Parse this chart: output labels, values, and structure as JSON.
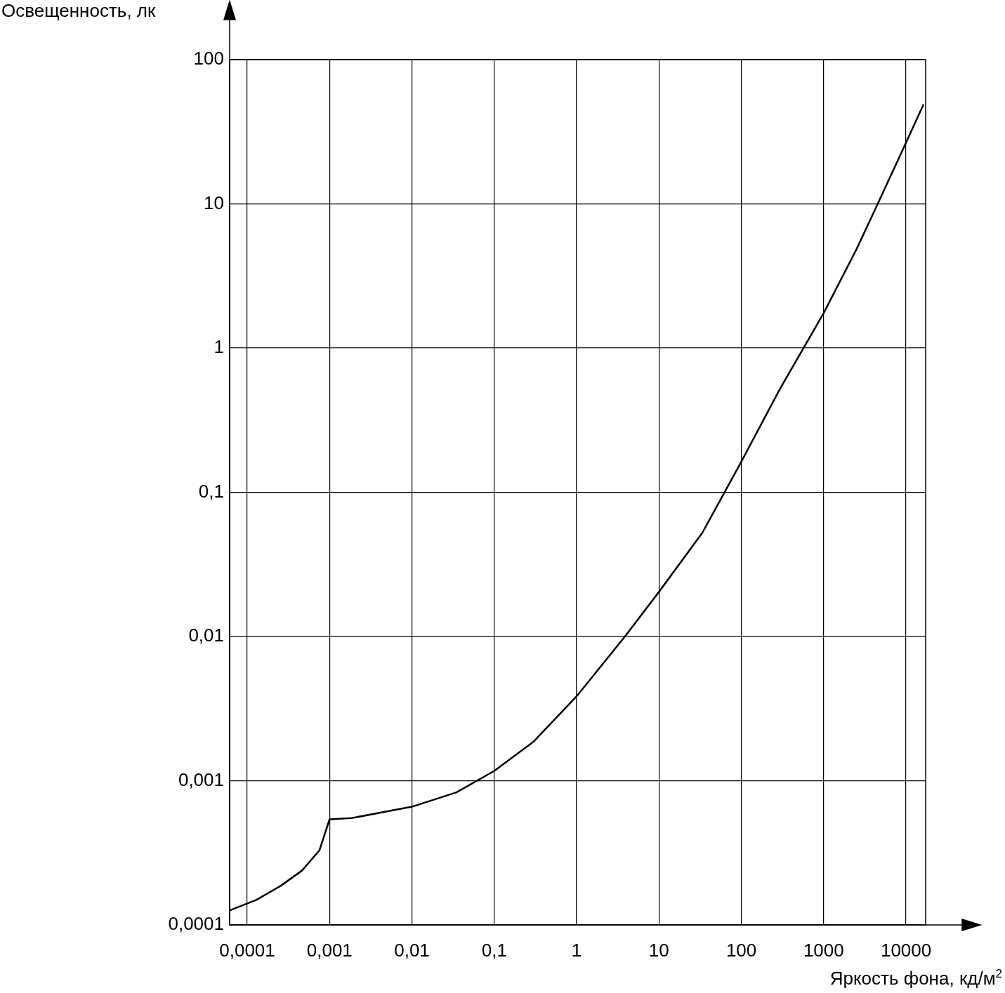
{
  "chart_data": {
    "type": "line",
    "xlabel": "Яркость фона, кд/м$^{2}$",
    "ylabel": "Освещенность, лк",
    "log": "xy",
    "grid": true,
    "legend": false,
    "marker": "none",
    "line_style": "solid",
    "xlim": [
      6.12e-05,
      17300
    ],
    "ylim": [
      0.0001,
      100
    ],
    "xticks": [
      {
        "value": 0.0001,
        "label": "0,0001"
      },
      {
        "value": 0.001,
        "label": "0,001"
      },
      {
        "value": 0.01,
        "label": "0,01"
      },
      {
        "value": 0.1,
        "label": "0,1"
      },
      1,
      10,
      100,
      1000,
      10000
    ],
    "yticks": [
      {
        "value": 0.0001,
        "label": "0,0001"
      },
      {
        "value": 0.001,
        "label": "0,001"
      },
      {
        "value": 0.01,
        "label": "0,01"
      },
      {
        "value": 0.1,
        "label": "0,1"
      },
      1,
      10,
      100
    ],
    "series": [
      {
        "color": "#000000",
        "x": [
          6.12e-05,
          0.000129,
          0.000256,
          0.000462,
          0.000755,
          0.001,
          0.00183,
          0.01,
          0.0347,
          0.1,
          0.301,
          1,
          3.86,
          10,
          33.7,
          100,
          290,
          1000,
          2510,
          4530,
          10000,
          16300
        ],
        "values": [
          0.000126,
          0.000149,
          0.000187,
          0.000238,
          0.00033,
          0.00054,
          0.00055,
          0.00066,
          0.00083,
          0.00117,
          0.00187,
          0.00385,
          0.01,
          0.0204,
          0.0525,
          0.163,
          0.513,
          1.75,
          4.86,
          10,
          26.6,
          49
        ]
      }
    ]
  }
}
